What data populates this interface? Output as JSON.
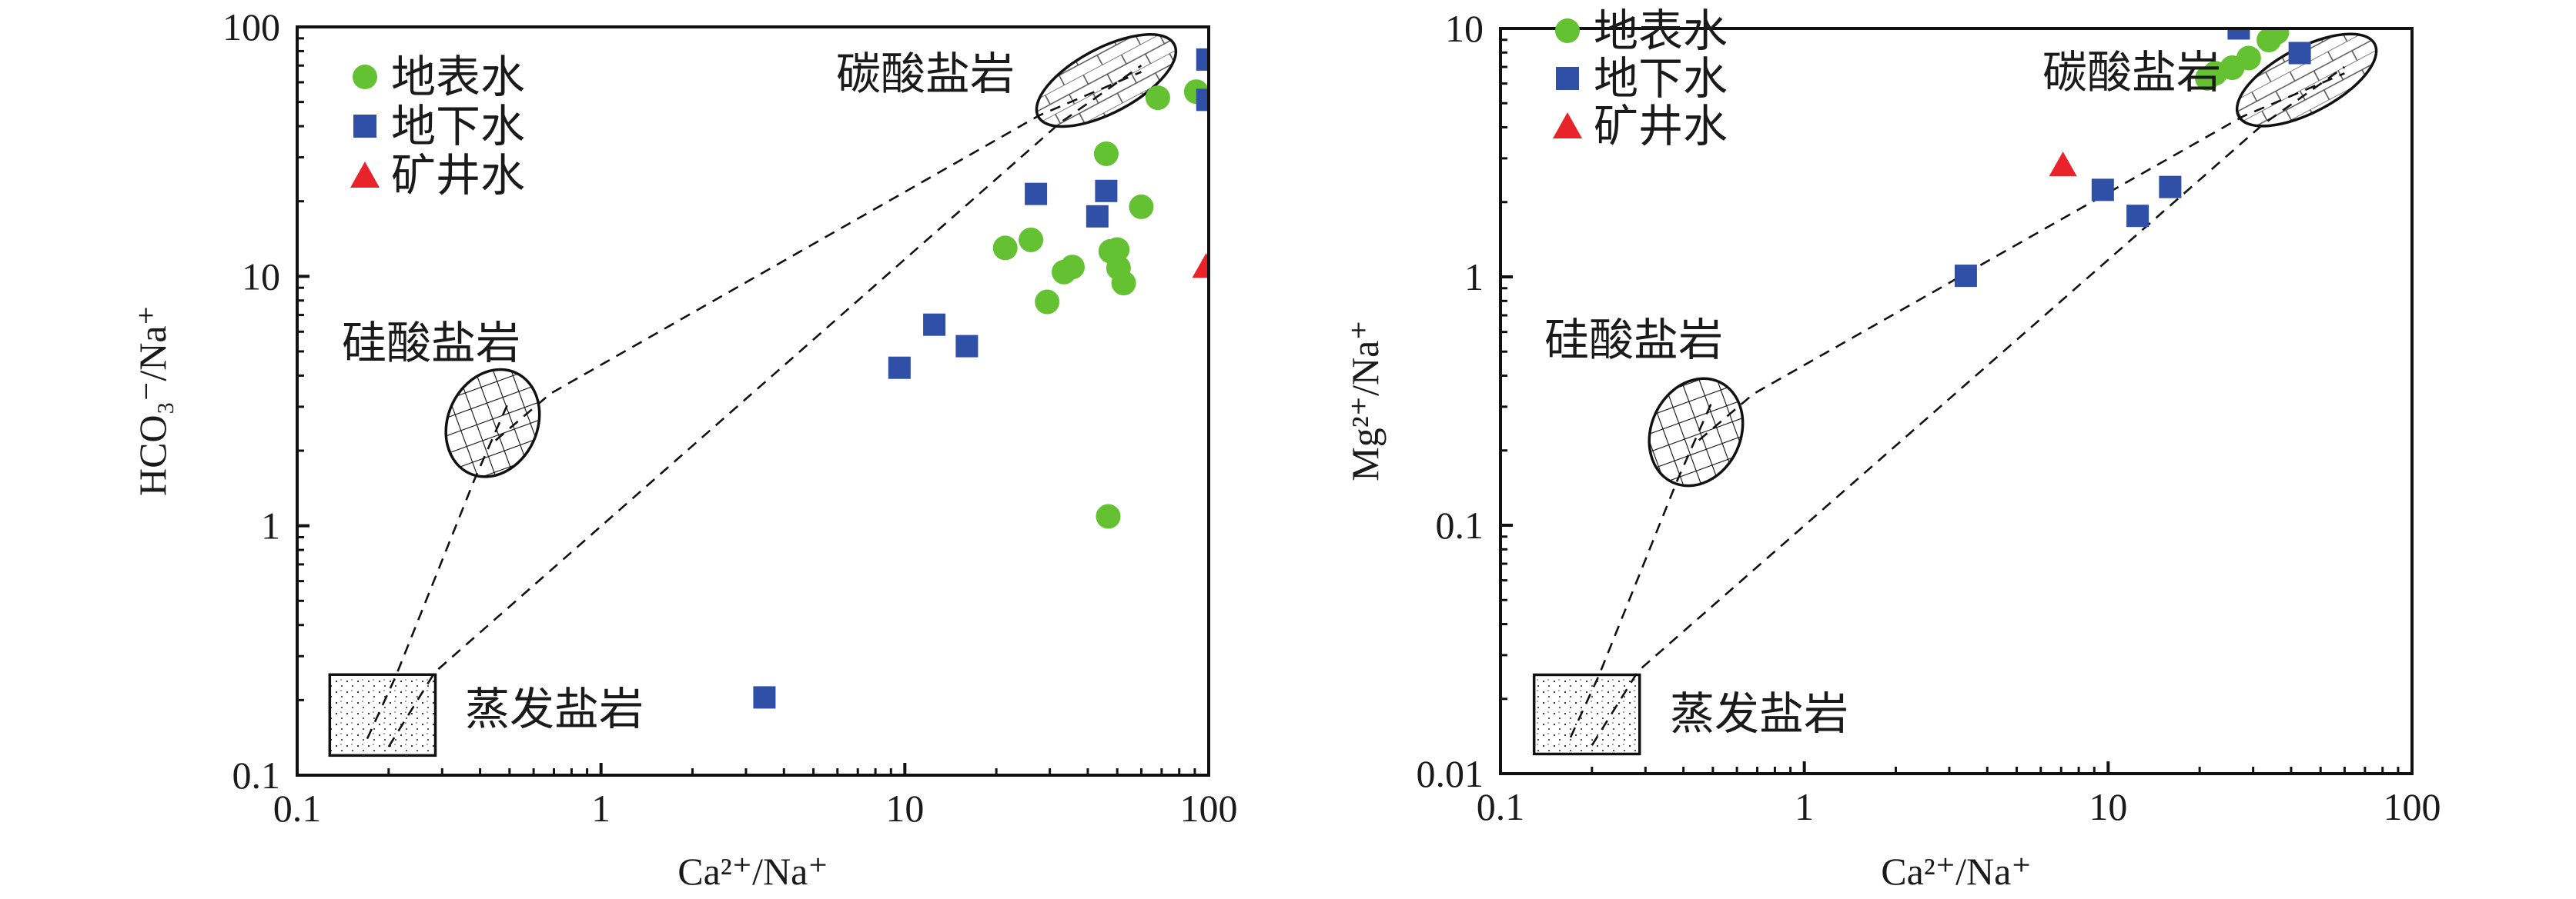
{
  "chart_data": [
    {
      "type": "scatter",
      "xlabel": "Ca²⁺/Na⁺",
      "ylabel": "HCO₃⁻/Na⁺",
      "xscale": "log",
      "yscale": "log",
      "xlim": [
        0.1,
        100
      ],
      "ylim": [
        0.1,
        100
      ],
      "xticks": [
        "0.1",
        "1",
        "10",
        "100"
      ],
      "yticks": [
        "0.1",
        "1",
        "10",
        "100"
      ],
      "grid": false,
      "legend_position": "top-left",
      "series": [
        {
          "name": "地表水",
          "marker": "circle",
          "color": "#63c132",
          "points": [
            [
              68,
              52
            ],
            [
              91,
              55
            ],
            [
              46,
              31
            ],
            [
              60,
              19
            ],
            [
              21.4,
              13
            ],
            [
              26,
              14
            ],
            [
              33.4,
              10.4
            ],
            [
              35.6,
              10.9
            ],
            [
              47.6,
              12.6
            ],
            [
              50,
              12.8
            ],
            [
              50.5,
              10.8
            ],
            [
              52.5,
              9.4
            ],
            [
              29.4,
              7.9
            ],
            [
              46.7,
              1.09
            ]
          ]
        },
        {
          "name": "地下水",
          "marker": "square",
          "color": "#3050a8",
          "points": [
            [
              99,
              74
            ],
            [
              99,
              51
            ],
            [
              27,
              21.4
            ],
            [
              46,
              22
            ],
            [
              43,
              17.4
            ],
            [
              12.5,
              6.4
            ],
            [
              16,
              5.25
            ],
            [
              9.6,
              4.3
            ],
            [
              3.45,
              0.205
            ]
          ]
        },
        {
          "name": "矿井水",
          "marker": "triangle",
          "color": "#e8232a",
          "points": [
            [
              98,
              10.9
            ]
          ]
        }
      ],
      "regions": [
        {
          "label": "碳酸盐岩",
          "pattern": "brick",
          "shape": "ellipse",
          "center": [
            46,
            61
          ]
        },
        {
          "label": "硅酸盐岩",
          "pattern": "crosshatch",
          "shape": "ellipse",
          "center": [
            0.44,
            2.58
          ]
        },
        {
          "label": "蒸发盐岩",
          "pattern": "dots",
          "shape": "rect",
          "xrange": [
            0.128,
            0.285
          ],
          "yrange": [
            0.12,
            0.253
          ]
        }
      ],
      "mixing_lines": [
        [
          [
            0.17,
            0.14
          ],
          [
            0.211,
            0.249
          ],
          [
            0.383,
            1.53
          ],
          [
            0.5,
            3.2
          ]
        ],
        [
          [
            0.2,
            0.13
          ],
          [
            0.284,
            0.259
          ],
          [
            32.4,
            41.2
          ],
          [
            60,
            70
          ]
        ],
        [
          [
            0.45,
            2.2
          ],
          [
            0.68,
            3.38
          ],
          [
            27.7,
            44.2
          ],
          [
            60,
            66
          ]
        ]
      ]
    },
    {
      "type": "scatter",
      "xlabel": "Ca²⁺/Na⁺",
      "ylabel": "Mg²⁺/Na⁺",
      "xscale": "log",
      "yscale": "log",
      "xlim": [
        0.1,
        100
      ],
      "ylim": [
        0.01,
        10
      ],
      "xticks": [
        "0.1",
        "1",
        "10",
        "100"
      ],
      "yticks": [
        "0.01",
        "0.1",
        "1",
        "10"
      ],
      "grid": false,
      "legend_position": "top-left",
      "series": [
        {
          "name": "地表水",
          "marker": "circle",
          "color": "#63c132",
          "points": [
            [
              21.2,
              6.3
            ],
            [
              22.5,
              6.6
            ],
            [
              25.6,
              6.95
            ],
            [
              29,
              7.6
            ],
            [
              33.8,
              8.98
            ],
            [
              35.9,
              9.65
            ]
          ]
        },
        {
          "name": "地下水",
          "marker": "square",
          "color": "#3050a8",
          "points": [
            [
              26.9,
              10
            ],
            [
              42.7,
              7.96
            ],
            [
              9.6,
              2.24
            ],
            [
              16,
              2.3
            ],
            [
              12.5,
              1.76
            ],
            [
              3.4,
              1.01
            ]
          ]
        },
        {
          "name": "矿井水",
          "marker": "triangle",
          "color": "#e8232a",
          "points": [
            [
              7.1,
              2.81
            ]
          ]
        }
      ],
      "regions": [
        {
          "label": "碳酸盐岩",
          "pattern": "brick",
          "shape": "ellipse",
          "center": [
            45,
            6.2
          ]
        },
        {
          "label": "硅酸盐岩",
          "pattern": "crosshatch",
          "shape": "ellipse",
          "center": [
            0.44,
            0.237
          ]
        },
        {
          "label": "蒸发盐岩",
          "pattern": "dots",
          "shape": "rect",
          "xrange": [
            0.129,
            0.287
          ],
          "yrange": [
            0.012,
            0.025
          ]
        }
      ],
      "mixing_lines": [
        [
          [
            0.17,
            0.014
          ],
          [
            0.211,
            0.0249
          ],
          [
            0.383,
            0.153
          ],
          [
            0.5,
            0.32
          ]
        ],
        [
          [
            0.2,
            0.013
          ],
          [
            0.284,
            0.0259
          ],
          [
            32.4,
            4.12
          ],
          [
            60,
            7.0
          ]
        ],
        [
          [
            0.45,
            0.22
          ],
          [
            0.68,
            0.338
          ],
          [
            27.7,
            4.42
          ],
          [
            60,
            6.6
          ]
        ]
      ]
    }
  ]
}
